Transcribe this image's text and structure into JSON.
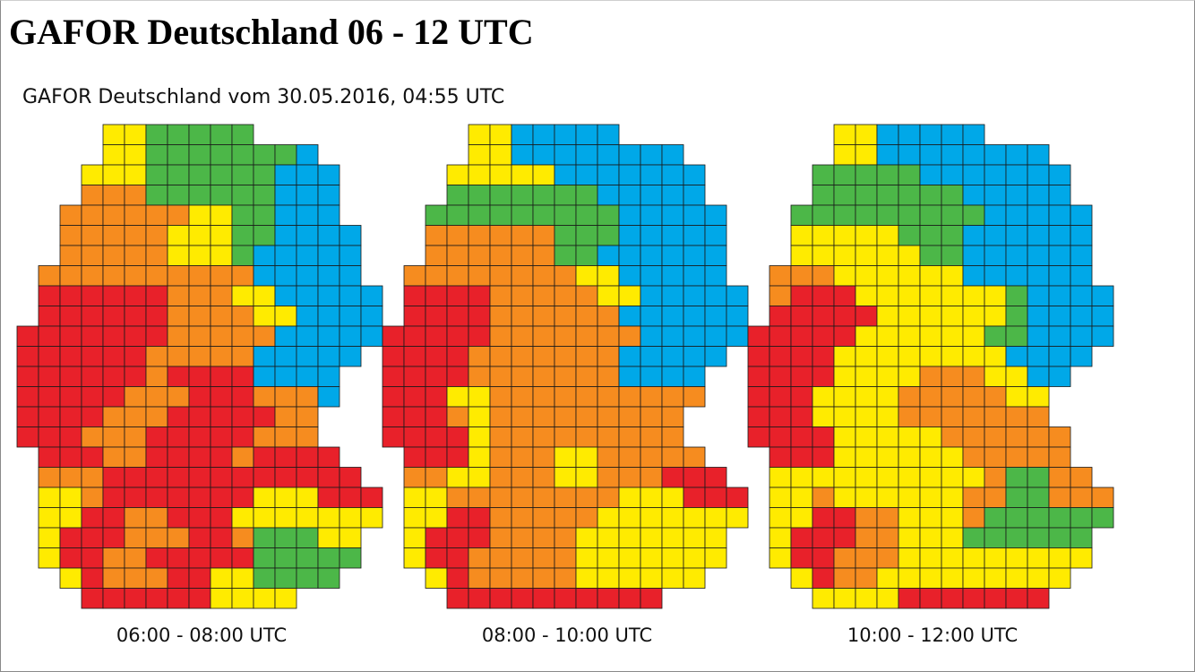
{
  "header": {
    "title": "GAFOR Deutschland 06 - 12 UTC",
    "subtitle": "GAFOR Deutschland vom 30.05.2016, 04:55 UTC"
  },
  "colors": {
    "C": "#00a8e8",
    "O": "#4cb748",
    "D": "#ffeb00",
    "M": "#f68c1f",
    "X": "#e8212a",
    "border": "#1a1a1a"
  },
  "maps": [
    {
      "caption": "06:00 - 08:00 UTC",
      "grid": [
        "....DDOOOOO......",
        "....DDOOOOOOOC...",
        "...DDDOOOOOOCCC..",
        "...MMMOOOOOOCCC..",
        "..MMMMMMDDOOCCC..",
        "..MMMMMDDDOOCCCC.",
        "..MMMMMDDDOCCCCC.",
        ".MMMMMMMMMMCCCCC.",
        ".XXXXXXMMMDDCCCCC",
        ".XXXXXXMMMMDDCCCC",
        "XXXXXXXMMMMMCCCCC",
        "XXXXXXMMMMMCCCCC.",
        "XXXXXXMXXXXCCCC..",
        "XXXXXMMMXXXMMMC..",
        "XXXXMMMXXXXXMM...",
        "XXXMMMXXXXXMMM...",
        ".XXXMMXXXXMXXXX..",
        ".MMMXXXXXXXXXXXX.",
        ".DDMXXXXXXXDDDXXX",
        ".DDXXMMXXXDDDDDDD",
        ".DXXXMMMXXMOOODD.",
        ".DXXMMXXXXXOOOOO.",
        "..DXMMMXXDDOOOO..",
        "...XXXXXXDDDD...."
      ]
    },
    {
      "caption": "08:00 - 10:00 UTC",
      "grid": [
        "....DDCCCCC......",
        "....DDCCCCCCCC...",
        "...DDDDDCCCCCCC..",
        "...OOOOOOOCCCCC..",
        "..OOOOOOOOOCCCCC.",
        "..MMMMMMOOOCCCCC.",
        "..MMMMMMOOCCCCCC.",
        ".MMMMMMMMDDCCCCC.",
        ".XXXXMMMMMDDCCCCC",
        ".XXXXMMMMMMCCCCCC",
        "XXXXXMMMMMMMCCCCC",
        "XXXXMMMMMMMCCCCC.",
        "XXXXMMMMMMMCCCC..",
        "XXXDDMMMMMMMMMM..",
        "XXXMDMMMMMMMMM...",
        "XXXXDMMMMMMMMM...",
        ".XXXDMMMDDMMMMM..",
        ".MMDDMMMDDMMMXXX.",
        ".DDMMMMMMMMDDDXXX",
        ".DDXXMMMMMDDDDDDD",
        ".DXXXMMMMDDDDDDD.",
        ".DXXMMMMMDDDDDDD.",
        "..DXMMMMMDDDDDD..",
        "...XXXXXXXXXX...."
      ]
    },
    {
      "caption": "10:00 - 12:00 UTC",
      "grid": [
        "....DDCCCCC......",
        "....DDCCCCCCCC...",
        "...OOOOOCCCCCCC..",
        "...OOOOOOOCCCCC..",
        "..OOOOOOOOOCCCCC.",
        "..DDDDDOOOCCCCCC.",
        "..DDDDDDOOCCCCCC.",
        ".MMMDDDDDDCCCCCC.",
        ".MXXXDDDDDDDOCCCC",
        ".XXXXXDDDDDDOCCCC",
        "XXXXXDDDDDDOOCCCC",
        "XXXXDDDDDDDDCCCC.",
        "XXXXDDDDMMMDDCC..",
        "XXXDDDDMMMMMDD...",
        "XXXDDDDMMMMMMM...",
        "XXXXDDDDDMMMMMM..",
        ".XXXDDDDDDMMMMM..",
        ".DDDDDDDDDDMOOMM.",
        ".DDMDDDDDDMMOOMMM",
        ".DDXXMMDDDMOOOOOO",
        ".DXXXMMDDDOOOOOO.",
        ".DXXMMMDDDDDDDDD.",
        "..DXMMDDDDDDDDD..",
        "...DDDDXXXXXXX..."
      ]
    }
  ]
}
